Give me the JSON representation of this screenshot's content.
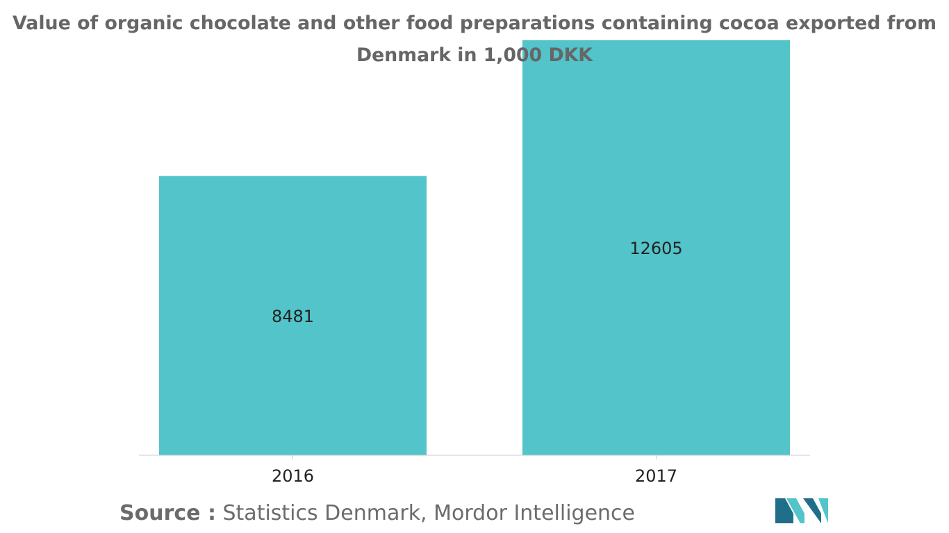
{
  "colors": {
    "bar": "#52c4ca",
    "title": "#666666",
    "text": "#222222",
    "axis": "#cccccc",
    "logo_dark": "#1f6f8b",
    "logo_light": "#52c4ca"
  },
  "chart_data": {
    "type": "bar",
    "title": "Value of organic chocolate and other food preparations containing cocoa exported from Denmark in 1,000 DKK",
    "title_lines": [
      "Value of organic chocolate and other food preparations containing cocoa exported from",
      "Denmark in 1,000 DKK"
    ],
    "categories": [
      "2016",
      "2017"
    ],
    "values": [
      8481,
      12605
    ],
    "data_labels": [
      "8481",
      "12605"
    ],
    "xlabel": "",
    "ylabel": "",
    "ylim": [
      0,
      12605
    ],
    "grid": false,
    "legend": "none"
  },
  "footer": {
    "source_prefix": "Source :",
    "source_text": "Statistics Denmark, Mordor Intelligence"
  },
  "logo": {
    "icon": "mordor-intelligence-logo-icon"
  }
}
